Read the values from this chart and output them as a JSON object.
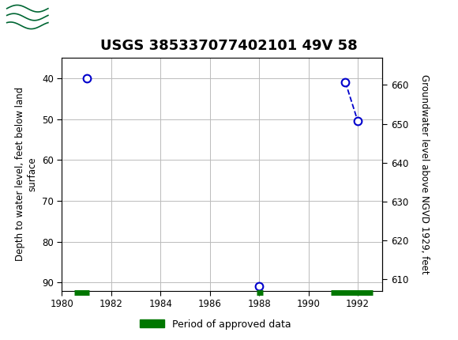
{
  "title": "USGS 385337077402101 49V 58",
  "ylabel_left": "Depth to water level, feet below land\nsurface",
  "ylabel_right": "Groundwater level above NGVD 1929, feet",
  "xlim": [
    1980,
    1993
  ],
  "ylim_left_bottom": 92,
  "ylim_left_top": 35,
  "ylim_right_bottom": 607,
  "ylim_right_top": 667,
  "yticks_left": [
    40,
    50,
    60,
    70,
    80,
    90
  ],
  "yticks_right": [
    610,
    620,
    630,
    640,
    650,
    660
  ],
  "xticks": [
    1980,
    1982,
    1984,
    1986,
    1988,
    1990,
    1992
  ],
  "data_points_x": [
    1981.0,
    1988.0,
    1991.5,
    1992.0
  ],
  "data_points_y": [
    40.0,
    91.0,
    41.0,
    50.5
  ],
  "connected_points_x": [
    1991.5,
    1992.0
  ],
  "connected_points_y": [
    41.0,
    50.5
  ],
  "green_bars": [
    {
      "x_start": 1980.5,
      "x_end": 1981.1,
      "y": 92.5
    },
    {
      "x_start": 1987.9,
      "x_end": 1988.15,
      "y": 92.5
    },
    {
      "x_start": 1990.9,
      "x_end": 1992.6,
      "y": 92.5
    }
  ],
  "point_color": "#0000cc",
  "line_color": "#0000cc",
  "green_color": "#007700",
  "background_color": "#ffffff",
  "plot_bg_color": "#ffffff",
  "grid_color": "#bbbbbb",
  "header_bg_color": "#006633",
  "header_text_color": "#ffffff",
  "title_fontsize": 13,
  "axis_label_fontsize": 8.5,
  "tick_fontsize": 8.5,
  "legend_label": "Period of approved data",
  "marker_size": 7,
  "marker_linewidth": 1.5
}
